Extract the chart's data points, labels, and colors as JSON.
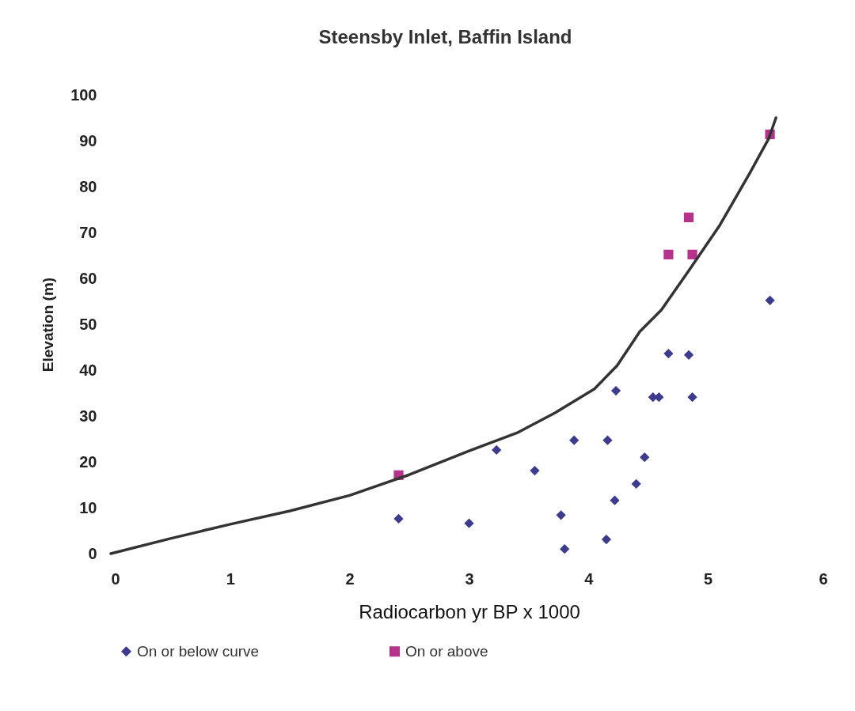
{
  "chart_data": {
    "type": "scatter",
    "title": "Steensby Inlet, Baffin Island",
    "xlabel": "Radiocarbon yr BP x 1000",
    "ylabel": "Elevation (m)",
    "xlim": [
      0,
      6
    ],
    "xticks": [
      0,
      1,
      2,
      3,
      4,
      5,
      6
    ],
    "ylim": [
      0,
      100
    ],
    "yticks": [
      0,
      10,
      20,
      30,
      40,
      50,
      60,
      70,
      80,
      90,
      100
    ],
    "grid": false,
    "legend": "bottom",
    "series": [
      {
        "name": "On or below curve",
        "color": "#3d3b8e",
        "marker": "diamond",
        "x": [
          2.41,
          3.0,
          3.23,
          3.55,
          3.77,
          3.8,
          3.88,
          4.15,
          4.16,
          4.22,
          4.23,
          4.4,
          4.47,
          4.54,
          4.59,
          4.67,
          4.84,
          4.87,
          5.52
        ],
        "values": [
          7.6,
          6.6,
          22.6,
          18.1,
          8.4,
          1.0,
          24.7,
          3.1,
          24.7,
          11.6,
          35.5,
          15.2,
          21.0,
          34.1,
          34.1,
          43.6,
          43.3,
          34.1,
          55.2
        ]
      },
      {
        "name": "On or above",
        "color": "#b5338a",
        "marker": "square",
        "x": [
          2.41,
          4.67,
          4.84,
          4.87,
          5.52
        ],
        "values": [
          17.1,
          65.2,
          73.3,
          65.2,
          91.4
        ]
      },
      {
        "type": "line",
        "color": "#333333",
        "marker": "none",
        "line_style": "solid",
        "x": [
          0,
          0.5,
          1,
          1.5,
          2,
          2.5,
          3,
          3.4,
          3.72,
          4.05,
          4.24,
          4.43,
          4.61,
          4.84,
          5.1,
          5.35,
          5.51,
          5.57
        ],
        "values": [
          0,
          3.3,
          6.4,
          9.3,
          12.7,
          17.2,
          22.4,
          26.3,
          30.7,
          35.9,
          41.0,
          48.4,
          53.1,
          61.7,
          71.6,
          82.9,
          90.5,
          95.0
        ]
      }
    ]
  }
}
